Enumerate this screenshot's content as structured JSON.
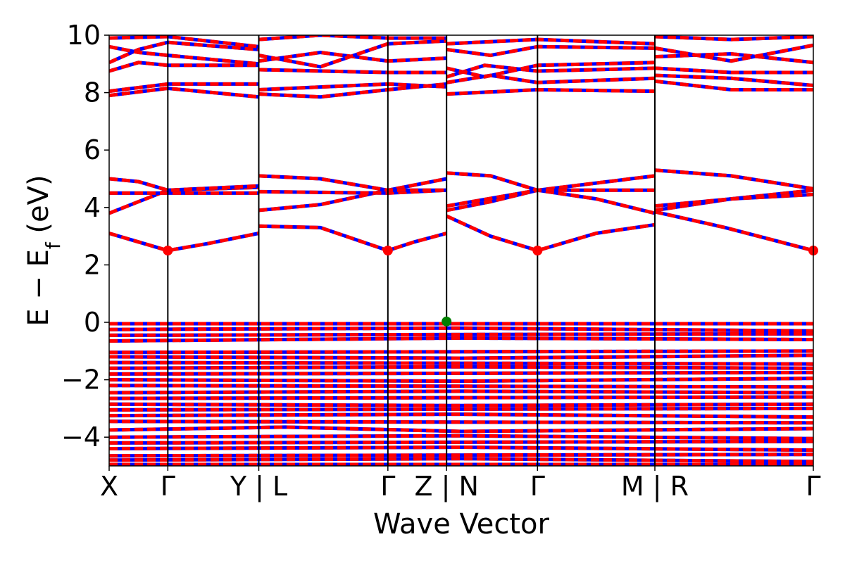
{
  "chart_data": {
    "type": "line",
    "title": "",
    "xlabel": "Wave Vector",
    "ylabel": "E − E",
    "ylabel_sub": "f",
    "ylabel_unit": " (eV)",
    "ylim": [
      -5,
      10
    ],
    "yticks": [
      {
        "value": 10,
        "label": "10"
      },
      {
        "value": 8,
        "label": "8"
      },
      {
        "value": 6,
        "label": "6"
      },
      {
        "value": 4,
        "label": "4"
      },
      {
        "value": 2,
        "label": "2"
      },
      {
        "value": 0,
        "label": "0"
      },
      {
        "value": -2,
        "label": "−2"
      },
      {
        "value": -4,
        "label": "−4"
      }
    ],
    "xlim": [
      0,
      12
    ],
    "kpath_ticks": [
      {
        "x": 0,
        "label": "X"
      },
      {
        "x": 1,
        "label": "Γ"
      },
      {
        "x": 2.55,
        "label": "Y | L"
      },
      {
        "x": 4.75,
        "label": "Γ"
      },
      {
        "x": 5.75,
        "label": "Z | N"
      },
      {
        "x": 7.3,
        "label": "Γ"
      },
      {
        "x": 9.3,
        "label": "M | R"
      },
      {
        "x": 12,
        "label": "Γ"
      }
    ],
    "segment_breaks": [
      2.55,
      5.75,
      9.3
    ],
    "band_colors": {
      "spin_up": "#ff0000",
      "spin_down": "#0000ff"
    },
    "cbm": {
      "points": [
        [
          1,
          2.5
        ],
        [
          4.75,
          2.5
        ],
        [
          7.3,
          2.5
        ],
        [
          12,
          2.5
        ]
      ],
      "color": "#ff0000"
    },
    "vbm": {
      "points": [
        [
          5.75,
          0.03
        ]
      ],
      "color": "#008000"
    },
    "series": [
      {
        "points": [
          [
            0,
            3.1
          ],
          [
            0.5,
            2.8
          ],
          [
            1,
            2.5
          ],
          [
            1.7,
            2.75
          ],
          [
            2.55,
            3.1
          ]
        ]
      },
      {
        "points": [
          [
            2.55,
            3.35
          ],
          [
            3.6,
            3.3
          ],
          [
            4.75,
            2.5
          ],
          [
            5.2,
            2.8
          ],
          [
            5.75,
            3.1
          ]
        ]
      },
      {
        "points": [
          [
            5.75,
            3.7
          ],
          [
            6.5,
            3.0
          ],
          [
            7.3,
            2.5
          ],
          [
            8.3,
            3.1
          ],
          [
            9.3,
            3.4
          ]
        ]
      },
      {
        "points": [
          [
            9.3,
            3.85
          ],
          [
            10.5,
            3.3
          ],
          [
            12,
            2.5
          ]
        ]
      },
      {
        "points": [
          [
            0,
            3.8
          ],
          [
            0.5,
            4.2
          ],
          [
            1,
            4.6
          ],
          [
            2.55,
            4.7
          ]
        ]
      },
      {
        "points": [
          [
            0,
            4.5
          ],
          [
            1,
            4.5
          ],
          [
            2.55,
            4.5
          ]
        ]
      },
      {
        "points": [
          [
            0,
            5.0
          ],
          [
            0.5,
            4.9
          ],
          [
            1,
            4.6
          ],
          [
            2.55,
            4.75
          ]
        ]
      },
      {
        "points": [
          [
            2.55,
            3.9
          ],
          [
            3.6,
            4.1
          ],
          [
            4.75,
            4.6
          ],
          [
            5.75,
            5.0
          ]
        ]
      },
      {
        "points": [
          [
            2.55,
            4.55
          ],
          [
            4.75,
            4.5
          ],
          [
            5.75,
            4.6
          ]
        ]
      },
      {
        "points": [
          [
            2.55,
            5.1
          ],
          [
            3.6,
            5.0
          ],
          [
            4.75,
            4.6
          ],
          [
            5.75,
            4.6
          ]
        ]
      },
      {
        "points": [
          [
            5.75,
            3.9
          ],
          [
            6.5,
            4.2
          ],
          [
            7.3,
            4.6
          ],
          [
            8.3,
            4.3
          ],
          [
            9.3,
            3.8
          ]
        ]
      },
      {
        "points": [
          [
            5.75,
            4.05
          ],
          [
            7.3,
            4.6
          ],
          [
            9.3,
            5.1
          ]
        ]
      },
      {
        "points": [
          [
            5.75,
            5.2
          ],
          [
            6.5,
            5.1
          ],
          [
            7.3,
            4.6
          ],
          [
            9.3,
            4.6
          ]
        ]
      },
      {
        "points": [
          [
            9.3,
            3.9
          ],
          [
            10.6,
            4.3
          ],
          [
            12,
            4.6
          ]
        ]
      },
      {
        "points": [
          [
            9.3,
            4.05
          ],
          [
            10.6,
            4.3
          ],
          [
            12,
            4.45
          ]
        ]
      },
      {
        "points": [
          [
            9.3,
            5.3
          ],
          [
            10.6,
            5.1
          ],
          [
            12,
            4.65
          ]
        ]
      },
      {
        "points": [
          [
            0,
            7.9
          ],
          [
            1,
            8.15
          ],
          [
            2.55,
            7.85
          ]
        ]
      },
      {
        "points": [
          [
            0,
            8.05
          ],
          [
            1,
            8.3
          ],
          [
            2.55,
            8.3
          ]
        ]
      },
      {
        "points": [
          [
            0,
            8.75
          ],
          [
            0.5,
            9.05
          ],
          [
            1,
            8.95
          ],
          [
            2.55,
            8.95
          ]
        ]
      },
      {
        "points": [
          [
            0,
            9.05
          ],
          [
            0.5,
            9.5
          ],
          [
            1,
            9.75
          ],
          [
            2.55,
            9.5
          ]
        ]
      },
      {
        "points": [
          [
            0,
            9.6
          ],
          [
            0.5,
            9.4
          ],
          [
            1,
            9.3
          ],
          [
            2.55,
            9.0
          ]
        ]
      },
      {
        "points": [
          [
            0,
            9.9
          ],
          [
            1,
            9.95
          ],
          [
            2.55,
            9.6
          ]
        ]
      },
      {
        "points": [
          [
            2.55,
            7.95
          ],
          [
            3.6,
            7.85
          ],
          [
            4.75,
            8.1
          ],
          [
            5.75,
            8.3
          ]
        ]
      },
      {
        "points": [
          [
            2.55,
            8.1
          ],
          [
            4.75,
            8.3
          ],
          [
            5.75,
            8.2
          ]
        ]
      },
      {
        "points": [
          [
            2.55,
            8.8
          ],
          [
            4.75,
            8.7
          ],
          [
            5.75,
            8.7
          ]
        ]
      },
      {
        "points": [
          [
            2.55,
            9.1
          ],
          [
            3.6,
            9.4
          ],
          [
            4.75,
            9.1
          ],
          [
            5.75,
            9.2
          ]
        ]
      },
      {
        "points": [
          [
            2.55,
            9.3
          ],
          [
            3.6,
            8.9
          ],
          [
            4.75,
            9.7
          ],
          [
            5.75,
            9.8
          ]
        ]
      },
      {
        "points": [
          [
            2.55,
            9.85
          ],
          [
            3.6,
            10.0
          ],
          [
            4.75,
            9.9
          ],
          [
            5.75,
            9.9
          ]
        ]
      },
      {
        "points": [
          [
            5.75,
            7.95
          ],
          [
            7.3,
            8.1
          ],
          [
            9.3,
            8.05
          ]
        ]
      },
      {
        "points": [
          [
            5.75,
            8.35
          ],
          [
            6.5,
            8.6
          ],
          [
            7.3,
            8.35
          ],
          [
            9.3,
            8.5
          ]
        ]
      },
      {
        "points": [
          [
            5.75,
            8.55
          ],
          [
            6.4,
            8.95
          ],
          [
            7.3,
            8.75
          ],
          [
            9.3,
            8.85
          ]
        ]
      },
      {
        "points": [
          [
            5.75,
            8.85
          ],
          [
            6.4,
            8.55
          ],
          [
            7.3,
            8.95
          ],
          [
            9.3,
            9.05
          ]
        ]
      },
      {
        "points": [
          [
            5.75,
            9.5
          ],
          [
            6.5,
            9.3
          ],
          [
            7.3,
            9.6
          ],
          [
            9.3,
            9.55
          ]
        ]
      },
      {
        "points": [
          [
            5.75,
            9.7
          ],
          [
            7.3,
            9.85
          ],
          [
            9.3,
            9.7
          ]
        ]
      },
      {
        "points": [
          [
            9.3,
            8.4
          ],
          [
            10.6,
            8.1
          ],
          [
            12,
            8.1
          ]
        ]
      },
      {
        "points": [
          [
            9.3,
            8.6
          ],
          [
            10.6,
            8.5
          ],
          [
            12,
            8.25
          ]
        ]
      },
      {
        "points": [
          [
            9.3,
            8.85
          ],
          [
            10.6,
            8.7
          ],
          [
            12,
            8.7
          ]
        ]
      },
      {
        "points": [
          [
            9.3,
            9.25
          ],
          [
            10.6,
            9.35
          ],
          [
            12,
            9.05
          ]
        ]
      },
      {
        "points": [
          [
            9.3,
            9.55
          ],
          [
            10.6,
            9.1
          ],
          [
            12,
            9.65
          ]
        ]
      },
      {
        "points": [
          [
            9.3,
            9.95
          ],
          [
            10.6,
            9.85
          ],
          [
            12,
            9.95
          ]
        ]
      },
      {
        "points": [
          [
            0,
            -0.05
          ],
          [
            12,
            -0.05
          ]
        ]
      },
      {
        "points": [
          [
            0,
            -0.25
          ],
          [
            6,
            -0.2
          ],
          [
            12,
            -0.3
          ]
        ]
      },
      {
        "points": [
          [
            0,
            -0.45
          ],
          [
            12,
            -0.4
          ]
        ]
      },
      {
        "points": [
          [
            0,
            -0.65
          ],
          [
            6,
            -0.55
          ],
          [
            12,
            -0.6
          ]
        ]
      },
      {
        "points": [
          [
            0,
            -1.05
          ],
          [
            12,
            -1.0
          ]
        ]
      },
      {
        "points": [
          [
            0,
            -1.2
          ],
          [
            6,
            -1.25
          ],
          [
            12,
            -1.15
          ]
        ]
      },
      {
        "points": [
          [
            0,
            -1.4
          ],
          [
            12,
            -1.45
          ]
        ]
      },
      {
        "points": [
          [
            0,
            -1.6
          ],
          [
            6,
            -1.55
          ],
          [
            12,
            -1.6
          ]
        ]
      },
      {
        "points": [
          [
            0,
            -1.8
          ],
          [
            12,
            -1.75
          ]
        ]
      },
      {
        "points": [
          [
            0,
            -2.0
          ],
          [
            6,
            -2.05
          ],
          [
            12,
            -1.95
          ]
        ]
      },
      {
        "points": [
          [
            0,
            -2.2
          ],
          [
            12,
            -2.25
          ]
        ]
      },
      {
        "points": [
          [
            0,
            -2.45
          ],
          [
            6,
            -2.4
          ],
          [
            12,
            -2.45
          ]
        ]
      },
      {
        "points": [
          [
            0,
            -2.65
          ],
          [
            12,
            -2.6
          ]
        ]
      },
      {
        "points": [
          [
            0,
            -2.85
          ],
          [
            6,
            -2.9
          ],
          [
            12,
            -2.85
          ]
        ]
      },
      {
        "points": [
          [
            0,
            -3.05
          ],
          [
            12,
            -3.0
          ]
        ]
      },
      {
        "points": [
          [
            0,
            -3.25
          ],
          [
            6,
            -3.2
          ],
          [
            12,
            -3.3
          ]
        ]
      },
      {
        "points": [
          [
            0,
            -3.45
          ],
          [
            12,
            -3.5
          ]
        ]
      },
      {
        "points": [
          [
            0,
            -3.75
          ],
          [
            3,
            -3.65
          ],
          [
            6,
            -3.8
          ],
          [
            12,
            -3.7
          ]
        ]
      },
      {
        "points": [
          [
            0,
            -4.0
          ],
          [
            6,
            -3.95
          ],
          [
            12,
            -4.05
          ]
        ]
      },
      {
        "points": [
          [
            0,
            -4.2
          ],
          [
            12,
            -4.15
          ]
        ]
      },
      {
        "points": [
          [
            0,
            -4.4
          ],
          [
            6,
            -4.35
          ],
          [
            12,
            -4.45
          ]
        ]
      },
      {
        "points": [
          [
            0,
            -4.65
          ],
          [
            12,
            -4.6
          ]
        ]
      },
      {
        "points": [
          [
            0,
            -4.8
          ],
          [
            6,
            -4.75
          ],
          [
            12,
            -4.85
          ]
        ]
      },
      {
        "points": [
          [
            0,
            -4.95
          ],
          [
            12,
            -4.95
          ]
        ]
      }
    ]
  }
}
